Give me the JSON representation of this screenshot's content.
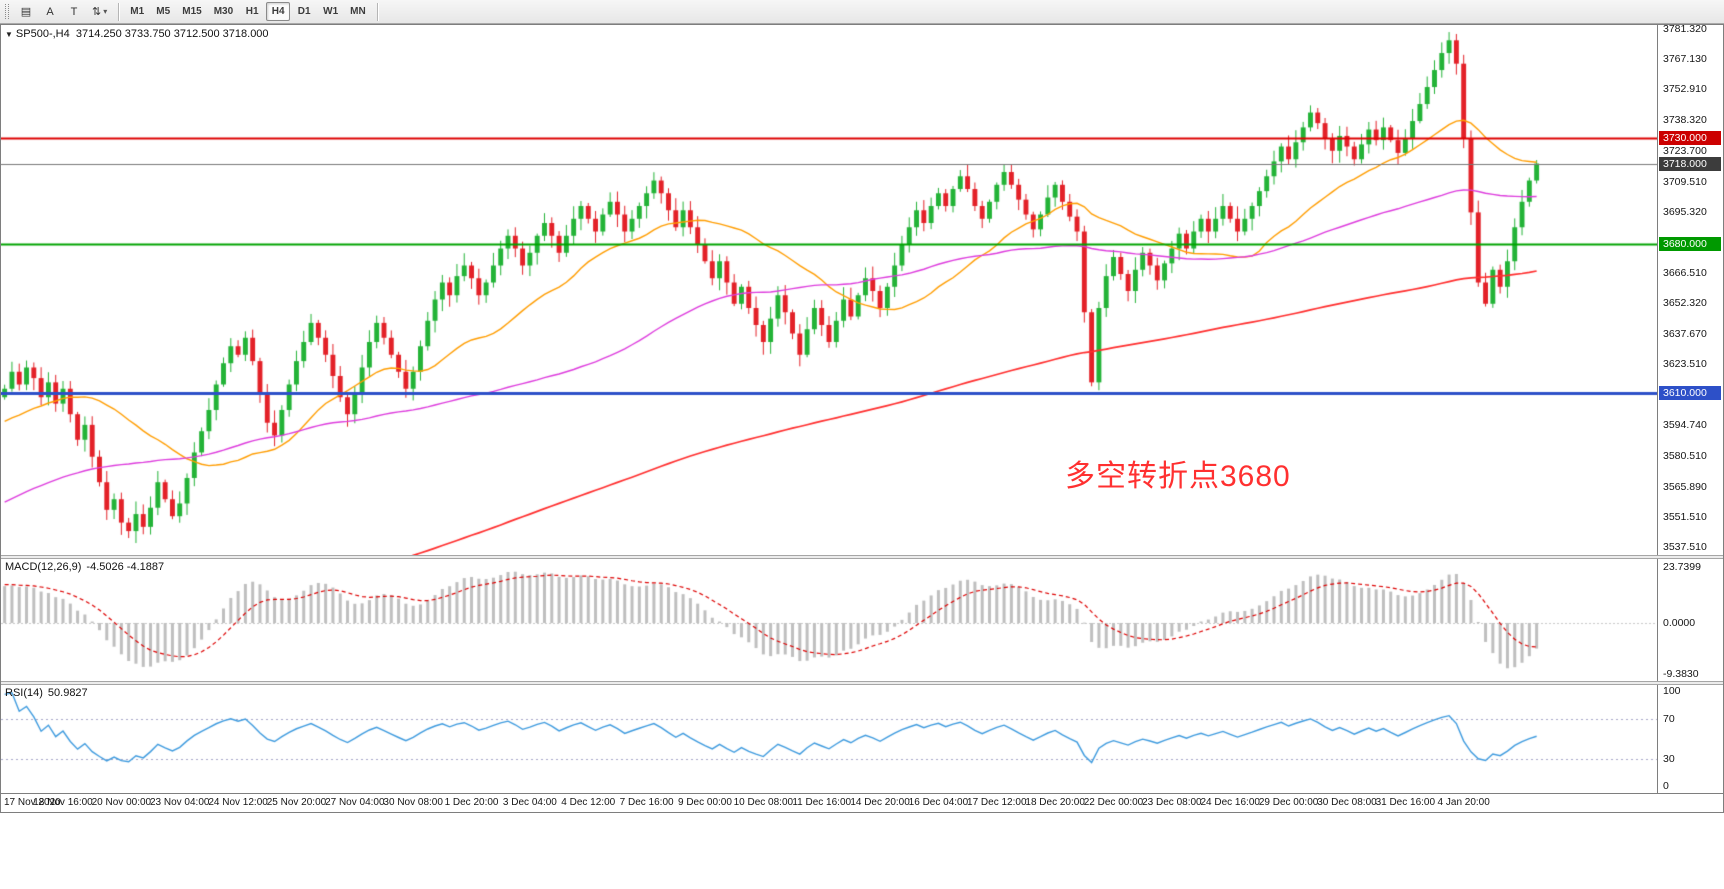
{
  "toolbar": {
    "left_buttons": [
      {
        "name": "charts-list-icon",
        "glyph": "▤"
      },
      {
        "name": "text-label-button",
        "glyph": "A"
      },
      {
        "name": "text-cursor-button",
        "glyph": "T"
      },
      {
        "name": "arrows-dropdown-button",
        "glyph": "⇅",
        "caret": "▾"
      }
    ],
    "timeframes": [
      "M1",
      "M5",
      "M15",
      "M30",
      "H1",
      "H4",
      "D1",
      "W1",
      "MN"
    ],
    "active_timeframe": "H4"
  },
  "chart": {
    "collapse_icon": "▼",
    "symbol": "SP500-,H4",
    "ohlc_text": "3714.250 3733.750 3712.500 3718.000"
  },
  "chart_data": {
    "type": "candlestick",
    "symbol": "SP500-",
    "timeframe": "H4",
    "ohlc_current": {
      "open": 3714.25,
      "high": 3733.75,
      "low": 3712.5,
      "close": 3718.0
    },
    "price_range": [
      3537.51,
      3781.32
    ],
    "right_margin_bars": 16,
    "first_open": 3608,
    "closes": [
      3612,
      3620,
      3614,
      3622,
      3617,
      3608,
      3615,
      3605,
      3612,
      3600,
      3588,
      3595,
      3580,
      3568,
      3555,
      3560,
      3549,
      3545,
      3553,
      3547,
      3556,
      3568,
      3560,
      3552,
      3558,
      3570,
      3582,
      3592,
      3602,
      3614,
      3624,
      3632,
      3628,
      3636,
      3625,
      3610,
      3596,
      3590,
      3602,
      3614,
      3625,
      3634,
      3643,
      3636,
      3628,
      3618,
      3608,
      3600,
      3610,
      3622,
      3634,
      3643,
      3636,
      3628,
      3620,
      3612,
      3620,
      3632,
      3644,
      3654,
      3662,
      3656,
      3665,
      3670,
      3664,
      3656,
      3662,
      3670,
      3678,
      3684,
      3678,
      3670,
      3676,
      3684,
      3690,
      3684,
      3676,
      3684,
      3692,
      3698,
      3692,
      3686,
      3694,
      3700,
      3694,
      3686,
      3692,
      3698,
      3704,
      3710,
      3704,
      3696,
      3688,
      3696,
      3688,
      3680,
      3672,
      3664,
      3672,
      3662,
      3652,
      3660,
      3650,
      3642,
      3634,
      3645,
      3656,
      3648,
      3638,
      3628,
      3640,
      3650,
      3642,
      3634,
      3644,
      3654,
      3646,
      3656,
      3664,
      3658,
      3650,
      3660,
      3670,
      3680,
      3688,
      3696,
      3690,
      3698,
      3704,
      3698,
      3706,
      3712,
      3706,
      3698,
      3692,
      3700,
      3708,
      3714,
      3708,
      3701,
      3694,
      3687,
      3694,
      3702,
      3708,
      3700,
      3693,
      3686,
      3648,
      3615,
      3650,
      3665,
      3674,
      3666,
      3658,
      3668,
      3676,
      3670,
      3663,
      3671,
      3678,
      3685,
      3678,
      3686,
      3692,
      3686,
      3692,
      3698,
      3692,
      3686,
      3692,
      3698,
      3705,
      3712,
      3719,
      3726,
      3720,
      3728,
      3735,
      3742,
      3737,
      3730,
      3724,
      3731,
      3726,
      3720,
      3727,
      3734,
      3729,
      3735,
      3729,
      3723,
      3730,
      3738,
      3746,
      3754,
      3762,
      3770,
      3776,
      3765,
      3730,
      3695,
      3662,
      3652,
      3668,
      3660,
      3672,
      3688,
      3700,
      3710,
      3718
    ],
    "x_labels": [
      "17 Nov 2020",
      "18 Nov 16:00",
      "20 Nov 00:00",
      "23 Nov 04:00",
      "24 Nov 12:00",
      "25 Nov 20:00",
      "27 Nov 04:00",
      "30 Nov 08:00",
      "1 Dec 20:00",
      "3 Dec 04:00",
      "4 Dec 12:00",
      "7 Dec 16:00",
      "9 Dec 00:00",
      "10 Dec 08:00",
      "11 Dec 16:00",
      "14 Dec 20:00",
      "16 Dec 04:00",
      "17 Dec 12:00",
      "18 Dec 20:00",
      "22 Dec 00:00",
      "23 Dec 08:00",
      "24 Dec 16:00",
      "29 Dec 00:00",
      "30 Dec 08:00",
      "31 Dec 16:00",
      "4 Jan 20:00"
    ],
    "y_ticks": [
      "3781.320",
      "3767.130",
      "3752.910",
      "3738.320",
      "3723.700",
      "3709.510",
      "3695.320",
      "3666.510",
      "3652.320",
      "3637.670",
      "3623.510",
      "3594.740",
      "3580.510",
      "3565.890",
      "3551.510",
      "3537.510"
    ],
    "hlines": [
      {
        "price": 3730.0,
        "label": "3730.000",
        "color": "#dd0000",
        "width": 2,
        "badge": "#cc0000"
      },
      {
        "price": 3718.0,
        "label": "3718.000",
        "color": "#777777",
        "width": 1,
        "badge": "#3c3c3c"
      },
      {
        "price": 3680.0,
        "label": "3680.000",
        "color": "#00a400",
        "width": 2,
        "badge": "#009900"
      },
      {
        "price": 3610.0,
        "label": "3610.000",
        "color": "#2d50c8",
        "width": 3,
        "badge": "#2d50c8"
      }
    ],
    "moving_averages": [
      {
        "period": 24,
        "color": "#ff9d00",
        "width": 1.4
      },
      {
        "period": 72,
        "color": "#dd3cdd",
        "width": 1.4
      },
      {
        "period": 200,
        "color": "#ff2e2e",
        "width": 1.7
      }
    ],
    "candle_up_color": "#23b337",
    "candle_down_color": "#e32128",
    "annotation": {
      "text": "多空转折点3680",
      "color": "#ff3030"
    }
  },
  "macd": {
    "label": "MACD(12,26,9)",
    "values": "-4.5026 -4.1887",
    "axis_labels": [
      "23.7399",
      "0.0000",
      "-9.3830"
    ],
    "histogram_color": "#bfbfbf",
    "signal_color": "#dd0000"
  },
  "rsi": {
    "label": "RSI(14)",
    "value": "50.9827",
    "axis_labels": [
      "100",
      "70",
      "30",
      "0"
    ],
    "levels": [
      70,
      30
    ],
    "line_color": "#3d9ade",
    "level_color": "#a6a6c8"
  }
}
